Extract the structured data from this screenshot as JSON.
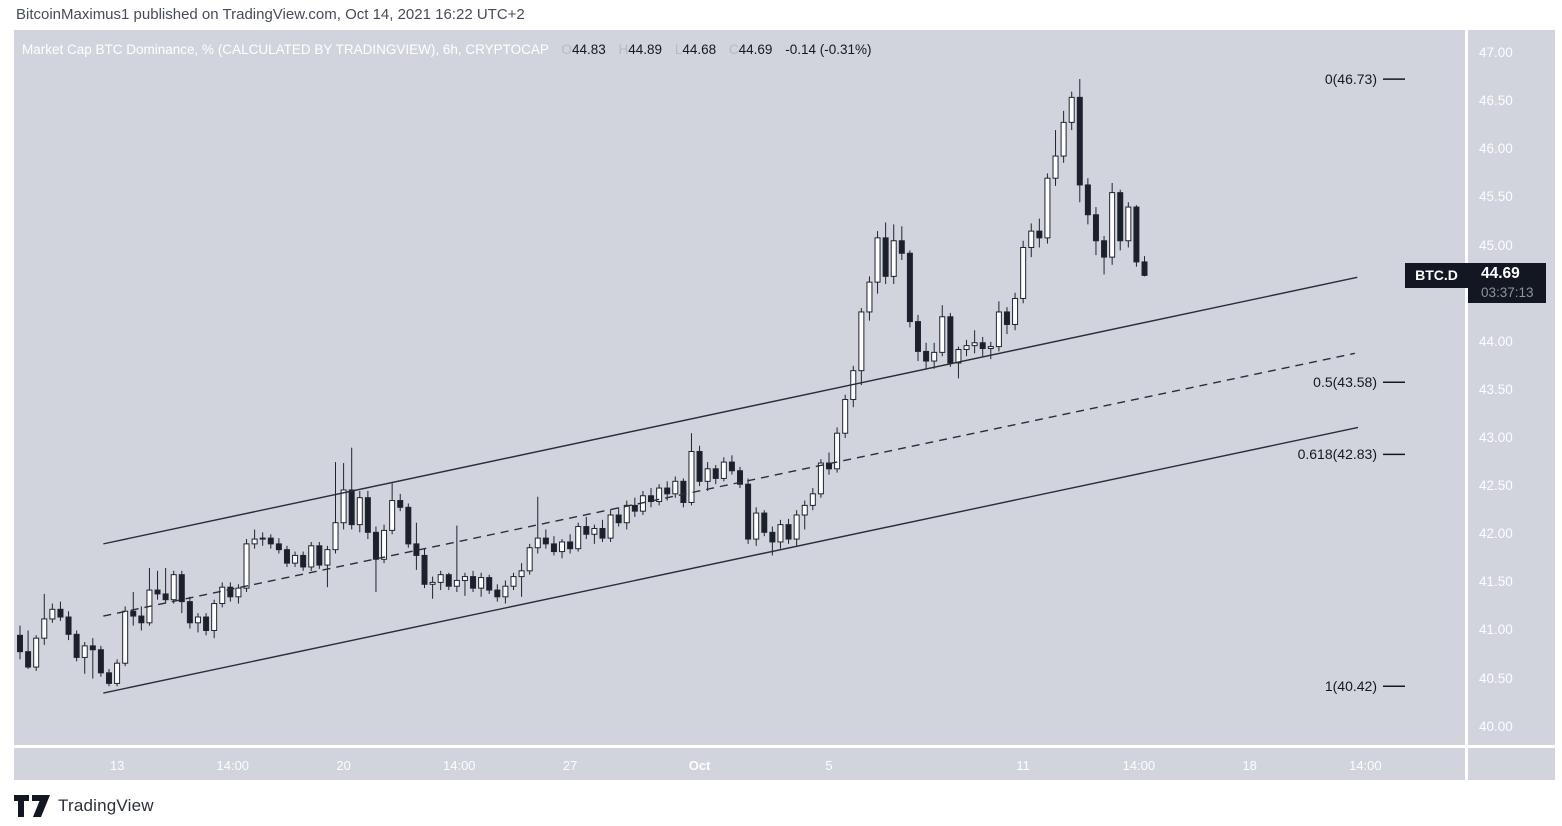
{
  "header": {
    "text": "BitcoinMaximus1 published on TradingView.com, Oct 14, 2021 16:22 UTC+2"
  },
  "legend": {
    "title": "Market Cap BTC Dominance, % (CALCULATED BY TRADINGVIEW), 6h, CRYPTOCAP",
    "o_label": "O",
    "o": "44.83",
    "h_label": "H",
    "h": "44.89",
    "l_label": "L",
    "l": "44.68",
    "c_label": "C",
    "c": "44.69",
    "change": "-0.14 (-0.31%)"
  },
  "price_label": {
    "symbol": "BTC.D",
    "price": "44.69",
    "countdown": "03:37:13"
  },
  "watermark": {
    "brand": "TradingView"
  },
  "colors": {
    "background": "#d1d4dc",
    "candle_up": "#ffffff",
    "candle_down": "#1c202d",
    "outline": "#20242f",
    "line": "#2a2e39",
    "axis_text": "#fdfdfe",
    "label_bg": "#131722",
    "countdown_text": "#8f939e",
    "fib_text": "#14181f"
  },
  "chart_data": {
    "type": "candlestick",
    "title": "Market Cap BTC Dominance, %",
    "source": "CALCULATED BY TRADINGVIEW",
    "interval": "6h",
    "exchange": "CRYPTOCAP",
    "current": {
      "open": 44.83,
      "high": 44.89,
      "low": 44.68,
      "close": 44.69,
      "change": -0.14,
      "change_pct": -0.31
    },
    "y_axis": {
      "min": 39.81,
      "max": 47.24,
      "tick_step": 0.5,
      "tick_min": 40.0,
      "tick_max": 47.0
    },
    "x_axis": {
      "labels": [
        {
          "text": "13",
          "bar": 12
        },
        {
          "text": "14:00",
          "bar": 26.3
        },
        {
          "text": "20",
          "bar": 40
        },
        {
          "text": "14:00",
          "bar": 54.3
        },
        {
          "text": "27",
          "bar": 68
        },
        {
          "text": "Oct",
          "bar": 84,
          "bold": true
        },
        {
          "text": "5",
          "bar": 100
        },
        {
          "text": "11",
          "bar": 124
        },
        {
          "text": "14:00",
          "bar": 138.3
        },
        {
          "text": "18",
          "bar": 152
        },
        {
          "text": "14:00",
          "bar": 166.3
        }
      ]
    },
    "channel_lines": [
      {
        "name": "channel-upper",
        "style": "solid",
        "from_bar": 10.3,
        "from_price": 41.9,
        "to_bar": 165.3,
        "to_price": 44.67
      },
      {
        "name": "channel-mid",
        "style": "dashed",
        "from_bar": 10.3,
        "from_price": 41.15,
        "to_bar": 165.0,
        "to_price": 43.88
      },
      {
        "name": "channel-lower",
        "style": "solid",
        "from_bar": 10.3,
        "from_price": 40.35,
        "to_bar": 165.4,
        "to_price": 43.11
      }
    ],
    "fib_levels": [
      {
        "level": "0",
        "label": "0(46.73)",
        "price": 46.73
      },
      {
        "level": "0.5",
        "label": "0.5(43.58)",
        "price": 43.58
      },
      {
        "level": "0.618",
        "label": "0.618(42.83)",
        "price": 42.83
      },
      {
        "level": "1",
        "label": "1(40.42)",
        "price": 40.42
      }
    ],
    "candles": [
      [
        40.95,
        41.05,
        40.7,
        40.78
      ],
      [
        40.78,
        41.0,
        40.6,
        40.62
      ],
      [
        40.62,
        40.95,
        40.58,
        40.92
      ],
      [
        40.92,
        41.38,
        40.85,
        41.12
      ],
      [
        41.12,
        41.28,
        41.08,
        41.22
      ],
      [
        41.22,
        41.3,
        41.1,
        41.14
      ],
      [
        41.14,
        41.2,
        40.9,
        40.96
      ],
      [
        40.96,
        41.0,
        40.68,
        40.72
      ],
      [
        40.72,
        40.88,
        40.55,
        40.84
      ],
      [
        40.84,
        40.92,
        40.5,
        40.8
      ],
      [
        40.8,
        40.84,
        40.52,
        40.56
      ],
      [
        40.56,
        40.6,
        40.42,
        40.45
      ],
      [
        40.45,
        40.7,
        40.42,
        40.66
      ],
      [
        40.66,
        41.25,
        40.63,
        41.2
      ],
      [
        41.2,
        41.4,
        41.05,
        41.15
      ],
      [
        41.15,
        41.25,
        41.0,
        41.08
      ],
      [
        41.08,
        41.65,
        41.05,
        41.42
      ],
      [
        41.42,
        41.62,
        41.32,
        41.38
      ],
      [
        41.38,
        41.65,
        41.28,
        41.32
      ],
      [
        41.32,
        41.62,
        41.28,
        41.58
      ],
      [
        41.58,
        41.62,
        41.18,
        41.3
      ],
      [
        41.3,
        41.35,
        41.02,
        41.08
      ],
      [
        41.08,
        41.18,
        40.98,
        41.14
      ],
      [
        41.14,
        41.18,
        40.95,
        41.0
      ],
      [
        41.0,
        41.32,
        40.92,
        41.28
      ],
      [
        41.28,
        41.5,
        41.24,
        41.45
      ],
      [
        41.45,
        41.5,
        41.3,
        41.35
      ],
      [
        41.35,
        41.48,
        41.28,
        41.44
      ],
      [
        41.44,
        41.95,
        41.4,
        41.9
      ],
      [
        41.9,
        42.05,
        41.85,
        41.95
      ],
      [
        41.95,
        42.02,
        41.88,
        41.96
      ],
      [
        41.96,
        42.0,
        41.85,
        41.9
      ],
      [
        41.9,
        41.96,
        41.8,
        41.84
      ],
      [
        41.84,
        41.88,
        41.66,
        41.7
      ],
      [
        41.7,
        41.82,
        41.66,
        41.78
      ],
      [
        41.78,
        41.82,
        41.62,
        41.66
      ],
      [
        41.66,
        41.92,
        41.62,
        41.88
      ],
      [
        41.88,
        41.92,
        41.64,
        41.68
      ],
      [
        41.68,
        41.88,
        41.45,
        41.84
      ],
      [
        41.84,
        42.75,
        41.8,
        42.12
      ],
      [
        42.12,
        42.74,
        42.05,
        42.46
      ],
      [
        42.46,
        42.9,
        42.05,
        42.1
      ],
      [
        42.1,
        42.45,
        42.02,
        42.38
      ],
      [
        42.38,
        42.45,
        41.95,
        42.02
      ],
      [
        42.02,
        42.08,
        41.4,
        41.74
      ],
      [
        41.74,
        42.1,
        41.7,
        42.04
      ],
      [
        42.04,
        42.53,
        42.0,
        42.35
      ],
      [
        42.35,
        42.42,
        42.24,
        42.28
      ],
      [
        42.28,
        42.32,
        41.86,
        41.9
      ],
      [
        41.9,
        42.12,
        41.63,
        41.78
      ],
      [
        41.78,
        41.85,
        41.44,
        41.48
      ],
      [
        41.48,
        41.56,
        41.33,
        41.5
      ],
      [
        41.5,
        41.62,
        41.42,
        41.58
      ],
      [
        41.58,
        41.6,
        41.42,
        41.46
      ],
      [
        41.46,
        42.09,
        41.4,
        41.52
      ],
      [
        41.52,
        41.6,
        41.36,
        41.56
      ],
      [
        41.56,
        41.62,
        41.4,
        41.44
      ],
      [
        41.44,
        41.6,
        41.35,
        41.55
      ],
      [
        41.55,
        41.58,
        41.38,
        41.42
      ],
      [
        41.42,
        41.48,
        41.3,
        41.35
      ],
      [
        41.35,
        41.52,
        41.28,
        41.46
      ],
      [
        41.46,
        41.6,
        41.42,
        41.56
      ],
      [
        41.56,
        41.7,
        41.35,
        41.62
      ],
      [
        41.62,
        41.9,
        41.58,
        41.86
      ],
      [
        41.86,
        42.39,
        41.8,
        41.96
      ],
      [
        41.96,
        42.05,
        41.85,
        41.9
      ],
      [
        41.9,
        41.98,
        41.78,
        41.82
      ],
      [
        41.82,
        41.95,
        41.75,
        41.92
      ],
      [
        41.92,
        42.0,
        41.8,
        41.85
      ],
      [
        41.85,
        42.12,
        41.82,
        42.08
      ],
      [
        42.08,
        42.18,
        41.95,
        42.0
      ],
      [
        42.0,
        42.1,
        41.9,
        42.06
      ],
      [
        42.06,
        42.15,
        41.92,
        41.96
      ],
      [
        41.96,
        42.25,
        41.92,
        42.2
      ],
      [
        42.2,
        42.28,
        42.08,
        42.12
      ],
      [
        42.12,
        42.35,
        42.05,
        42.3
      ],
      [
        42.3,
        42.38,
        42.18,
        42.24
      ],
      [
        42.24,
        42.45,
        42.2,
        42.4
      ],
      [
        42.4,
        42.48,
        42.28,
        42.34
      ],
      [
        42.34,
        42.52,
        42.3,
        42.48
      ],
      [
        42.48,
        42.55,
        42.35,
        42.42
      ],
      [
        42.42,
        42.6,
        42.38,
        42.55
      ],
      [
        42.55,
        42.58,
        42.28,
        42.33
      ],
      [
        42.33,
        43.05,
        42.3,
        42.86
      ],
      [
        42.86,
        42.92,
        42.5,
        42.55
      ],
      [
        42.55,
        42.75,
        42.45,
        42.68
      ],
      [
        42.68,
        42.72,
        42.52,
        42.58
      ],
      [
        42.58,
        42.8,
        42.55,
        42.75
      ],
      [
        42.75,
        42.82,
        42.62,
        42.66
      ],
      [
        42.66,
        42.7,
        42.48,
        42.52
      ],
      [
        42.52,
        42.58,
        41.9,
        41.95
      ],
      [
        41.95,
        42.28,
        41.88,
        42.22
      ],
      [
        42.22,
        42.25,
        41.98,
        42.02
      ],
      [
        42.02,
        42.08,
        41.78,
        41.92
      ],
      [
        41.92,
        42.15,
        41.85,
        42.1
      ],
      [
        42.1,
        42.16,
        41.9,
        41.95
      ],
      [
        41.95,
        42.25,
        41.88,
        42.2
      ],
      [
        42.2,
        42.35,
        42.05,
        42.3
      ],
      [
        42.3,
        42.48,
        42.25,
        42.42
      ],
      [
        42.42,
        42.78,
        42.38,
        42.74
      ],
      [
        42.74,
        42.85,
        42.62,
        42.68
      ],
      [
        42.68,
        43.11,
        42.64,
        43.05
      ],
      [
        43.05,
        43.45,
        43.0,
        43.4
      ],
      [
        43.4,
        43.75,
        43.32,
        43.7
      ],
      [
        43.7,
        44.35,
        43.55,
        44.31
      ],
      [
        44.31,
        44.68,
        44.22,
        44.62
      ],
      [
        44.62,
        45.15,
        44.5,
        45.08
      ],
      [
        45.08,
        45.24,
        44.6,
        44.68
      ],
      [
        44.68,
        45.22,
        44.6,
        45.05
      ],
      [
        45.05,
        45.2,
        44.85,
        44.92
      ],
      [
        44.92,
        44.95,
        44.15,
        44.21
      ],
      [
        44.21,
        44.28,
        43.8,
        43.9
      ],
      [
        43.9,
        43.99,
        43.72,
        43.8
      ],
      [
        43.8,
        43.99,
        43.72,
        43.89
      ],
      [
        43.89,
        44.38,
        43.85,
        44.26
      ],
      [
        44.26,
        44.3,
        43.74,
        43.78
      ],
      [
        43.78,
        43.95,
        43.62,
        43.92
      ],
      [
        43.92,
        44.02,
        43.85,
        43.96
      ],
      [
        43.96,
        44.12,
        43.88,
        43.99
      ],
      [
        43.99,
        44.05,
        43.85,
        43.93
      ],
      [
        43.93,
        44.0,
        43.82,
        43.95
      ],
      [
        43.95,
        44.42,
        43.9,
        44.31
      ],
      [
        44.31,
        44.36,
        44.08,
        44.18
      ],
      [
        44.18,
        44.51,
        44.12,
        44.45
      ],
      [
        44.45,
        45.05,
        44.4,
        44.98
      ],
      [
        44.98,
        45.23,
        44.88,
        45.15
      ],
      [
        45.15,
        45.28,
        44.98,
        45.08
      ],
      [
        45.08,
        45.75,
        45.02,
        45.7
      ],
      [
        45.7,
        46.2,
        45.62,
        45.93
      ],
      [
        45.93,
        46.4,
        45.86,
        46.28
      ],
      [
        46.28,
        46.6,
        46.2,
        46.54
      ],
      [
        46.54,
        46.73,
        45.45,
        45.63
      ],
      [
        45.63,
        45.7,
        45.22,
        45.32
      ],
      [
        45.32,
        45.4,
        44.9,
        45.05
      ],
      [
        45.05,
        45.1,
        44.7,
        44.88
      ],
      [
        44.88,
        45.65,
        44.8,
        45.55
      ],
      [
        45.55,
        45.58,
        44.95,
        45.05
      ],
      [
        45.05,
        45.45,
        44.98,
        45.4
      ],
      [
        45.4,
        45.42,
        44.78,
        44.83
      ],
      [
        44.83,
        44.89,
        44.68,
        44.69
      ]
    ]
  }
}
